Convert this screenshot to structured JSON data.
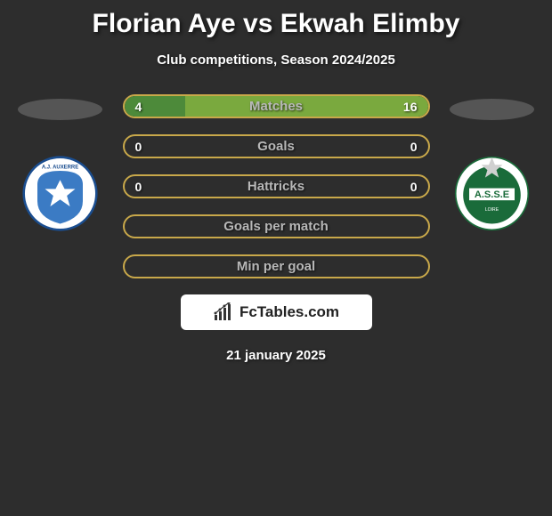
{
  "title": "Florian Aye vs Ekwah Elimby",
  "subtitle": "Club competitions, Season 2024/2025",
  "date": "21 january 2025",
  "watermark_text": "FcTables.com",
  "bars": [
    {
      "label": "Matches",
      "left": "4",
      "right": "16",
      "left_pct": 20,
      "right_pct": 80,
      "left_color": "#4d8a3a",
      "right_color": "#7aa93e",
      "border": "#c8a84a"
    },
    {
      "label": "Goals",
      "left": "0",
      "right": "0",
      "left_pct": 0,
      "right_pct": 0,
      "left_color": "#4d8a3a",
      "right_color": "#7aa93e",
      "border": "#c8a84a"
    },
    {
      "label": "Hattricks",
      "left": "0",
      "right": "0",
      "left_pct": 0,
      "right_pct": 0,
      "left_color": "#4d8a3a",
      "right_color": "#7aa93e",
      "border": "#c8a84a"
    },
    {
      "label": "Goals per match",
      "left": "",
      "right": "",
      "left_pct": 0,
      "right_pct": 0,
      "left_color": "#4d8a3a",
      "right_color": "#7aa93e",
      "border": "#c8a84a"
    },
    {
      "label": "Min per goal",
      "left": "",
      "right": "",
      "left_pct": 0,
      "right_pct": 0,
      "left_color": "#4d8a3a",
      "right_color": "#7aa93e",
      "border": "#c8a84a"
    }
  ],
  "left_club": {
    "name": "AJ Auxerre",
    "bg": "#ffffff",
    "main": "#3b7bc4"
  },
  "right_club": {
    "name": "AS Saint-Etienne",
    "bg": "#ffffff",
    "main": "#1a6b3a"
  },
  "label_color": "#b8b8b8",
  "value_color": "#ffffff"
}
